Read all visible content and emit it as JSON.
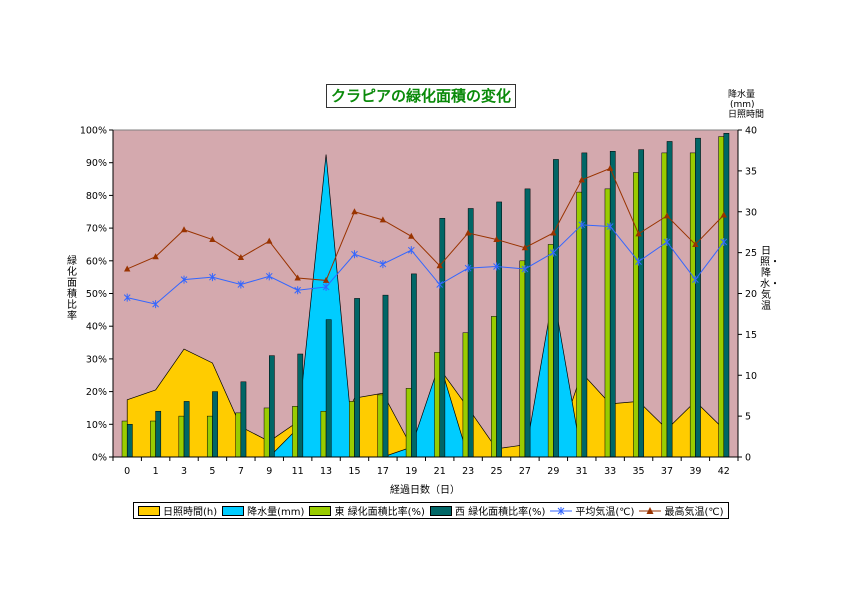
{
  "title": "クラピアの緑化面積の変化",
  "left_axis_title": "緑化面積比率",
  "right_axis_title_top": [
    "降水量",
    "(mm)",
    "日照時間"
  ],
  "right_axis_title_side": "日照・降水・気温",
  "x_axis_title": "経過日数（日）",
  "legend": [
    {
      "label": "日照時間(h)",
      "color": "#FFCC00",
      "kind": "area"
    },
    {
      "label": "降水量(mm)",
      "color": "#00CCFF",
      "kind": "area"
    },
    {
      "label": "東 緑化面積比率(%)",
      "color": "#99CC00",
      "kind": "bar"
    },
    {
      "label": "西 緑化面積比率(%)",
      "color": "#006666",
      "kind": "bar"
    },
    {
      "label": "平均気温(℃)",
      "color": "#3366FF",
      "kind": "line-star"
    },
    {
      "label": "最高気温(℃)",
      "color": "#993300",
      "kind": "line-triangle"
    }
  ],
  "chart_data": {
    "type": "bar",
    "plot_background": "#D4A9AE",
    "categories": [
      "0",
      "1",
      "3",
      "5",
      "7",
      "9",
      "11",
      "13",
      "15",
      "17",
      "19",
      "21",
      "23",
      "25",
      "27",
      "29",
      "31",
      "33",
      "35",
      "37",
      "39",
      "42"
    ],
    "left_axis": {
      "ylim": [
        0,
        100
      ],
      "ticks": [
        "0%",
        "10%",
        "20%",
        "30%",
        "40%",
        "50%",
        "60%",
        "70%",
        "80%",
        "90%",
        "100%"
      ]
    },
    "right_axis": {
      "ylim": [
        0,
        40
      ],
      "ticks": [
        "0",
        "5",
        "10",
        "15",
        "20",
        "25",
        "30",
        "35",
        "40"
      ]
    },
    "series": [
      {
        "name": "日照時間(h)",
        "axis": "right",
        "kind": "area",
        "color": "#FFCC00",
        "values": [
          7,
          8.2,
          13.2,
          11.5,
          3.7,
          1.9,
          4.3,
          0,
          7.2,
          7.8,
          1.3,
          10.8,
          6,
          1,
          1.5,
          0,
          10.3,
          6.5,
          6.8,
          3.4,
          6.8,
          3.4
        ]
      },
      {
        "name": "降水量(mm)",
        "axis": "right",
        "kind": "area",
        "color": "#00CCFF",
        "values": [
          0,
          0,
          0,
          0,
          0,
          0,
          3.5,
          37,
          0,
          0,
          1.2,
          11.5,
          0,
          0,
          0,
          20,
          0,
          0,
          0,
          0,
          0,
          0
        ]
      },
      {
        "name": "東 緑化面積比率(%)",
        "axis": "left",
        "kind": "bar",
        "color": "#99CC00",
        "values": [
          11,
          11,
          12.5,
          12.5,
          13.5,
          15,
          15.5,
          14,
          17,
          19,
          21,
          32,
          38,
          43,
          60,
          65,
          81,
          82,
          87,
          93,
          93,
          98
        ]
      },
      {
        "name": "西 緑化面積比率(%)",
        "axis": "left",
        "kind": "bar",
        "color": "#006666",
        "values": [
          10,
          14,
          17,
          20,
          23,
          31,
          31.5,
          42,
          48.5,
          49.5,
          56,
          73,
          76,
          78,
          82,
          91,
          93,
          93.5,
          94,
          96.5,
          97.5,
          99
        ]
      },
      {
        "name": "平均気温(℃)",
        "axis": "right",
        "kind": "line",
        "marker": "star",
        "color": "#3366FF",
        "values": [
          19.5,
          18.7,
          21.7,
          22,
          21.1,
          22.1,
          20.4,
          20.8,
          24.8,
          23.6,
          25.3,
          21.1,
          23.1,
          23.3,
          23,
          25,
          28.4,
          28.2,
          23.9,
          26.3,
          21.7,
          26.3
        ]
      },
      {
        "name": "最高気温(℃)",
        "axis": "right",
        "kind": "line",
        "marker": "triangle",
        "color": "#993300",
        "values": [
          23,
          24.5,
          27.8,
          26.6,
          24.4,
          26.4,
          21.9,
          21.6,
          30,
          29,
          27,
          23.4,
          27.4,
          26.6,
          25.6,
          27.4,
          33.9,
          35.3,
          27.3,
          29.5,
          26,
          29.6
        ]
      }
    ],
    "grid": false,
    "legend_position": "bottom"
  }
}
